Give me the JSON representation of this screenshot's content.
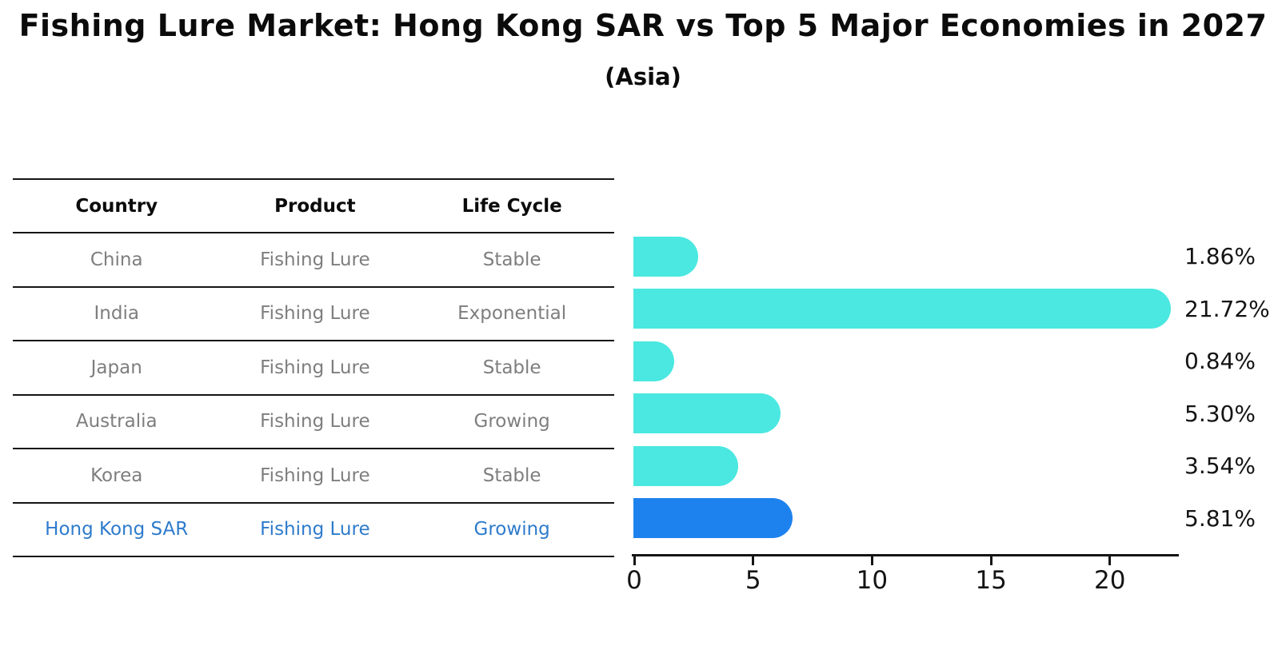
{
  "header": {
    "title": "Fishing Lure Market: Hong Kong SAR vs Top 5 Major Economies in 2027",
    "subtitle": "(Asia)"
  },
  "table": {
    "columns": [
      "Country",
      "Product",
      "Life Cycle"
    ],
    "rows": [
      {
        "country": "China",
        "product": "Fishing Lure",
        "life_cycle": "Stable",
        "highlight": false
      },
      {
        "country": "India",
        "product": "Fishing Lure",
        "life_cycle": "Exponential",
        "highlight": false
      },
      {
        "country": "Japan",
        "product": "Fishing Lure",
        "life_cycle": "Stable",
        "highlight": false
      },
      {
        "country": "Australia",
        "product": "Fishing Lure",
        "life_cycle": "Growing",
        "highlight": false
      },
      {
        "country": "Korea",
        "product": "Fishing Lure",
        "life_cycle": "Stable",
        "highlight": false
      },
      {
        "country": "Hong Kong SAR",
        "product": "Fishing Lure",
        "life_cycle": "Growing",
        "highlight": true
      }
    ]
  },
  "chart_data": {
    "type": "bar",
    "orientation": "horizontal",
    "title": "Fishing Lure Market: Hong Kong SAR vs Top 5 Major Economies in 2027",
    "subtitle": "(Asia)",
    "categories": [
      "China",
      "India",
      "Japan",
      "Australia",
      "Korea",
      "Hong Kong SAR"
    ],
    "values": [
      1.86,
      21.72,
      0.84,
      5.3,
      3.54,
      5.81
    ],
    "value_labels": [
      "1.86%",
      "21.72%",
      "0.84%",
      "5.30%",
      "3.54%",
      "5.81%"
    ],
    "x_ticks": [
      0,
      5,
      10,
      15,
      20
    ],
    "xlim": [
      0,
      23
    ],
    "grid": false,
    "legend": false,
    "bar_color": "#4AE8E0",
    "highlight_index": 5,
    "highlight_color": "#1E82EE",
    "highlight_border_style": "dotted"
  },
  "colors": {
    "highlight_text": "#2E7BCC",
    "table_text": "#7E7E7E",
    "heading_text": "#0B0B0B"
  }
}
